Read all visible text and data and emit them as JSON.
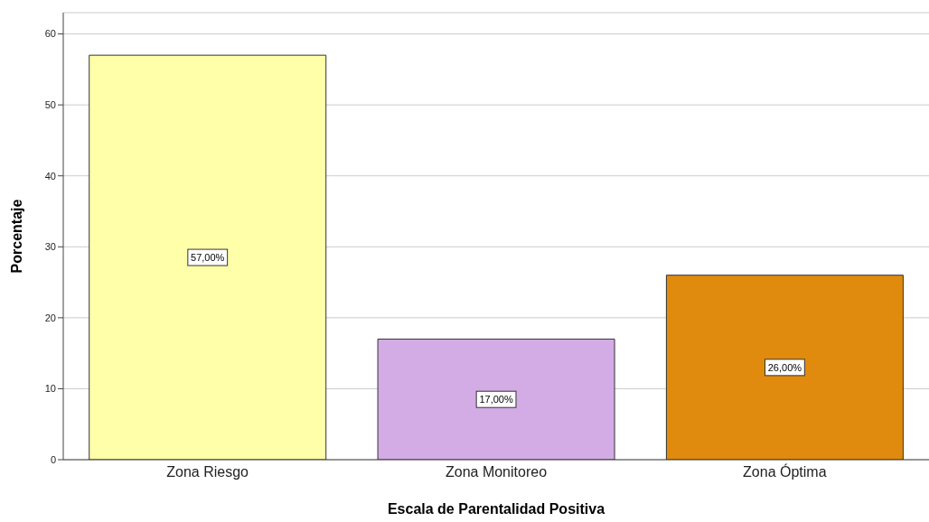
{
  "chart_data": {
    "type": "bar",
    "xlabel": "Escala de Parentalidad Positiva",
    "ylabel": "Porcentaje",
    "categories": [
      "Zona Riesgo",
      "Zona Monitoreo",
      "Zona Óptima"
    ],
    "values": [
      57,
      17,
      26
    ],
    "colors": [
      "#ffffaa",
      "#d3abe5",
      "#e08a0e"
    ],
    "value_labels": [
      "57,00%",
      "17,00%",
      "26,00%"
    ],
    "ylim": [
      0,
      63
    ],
    "yticks": [
      0,
      10,
      20,
      30,
      40,
      50,
      60
    ],
    "grid": "y"
  }
}
